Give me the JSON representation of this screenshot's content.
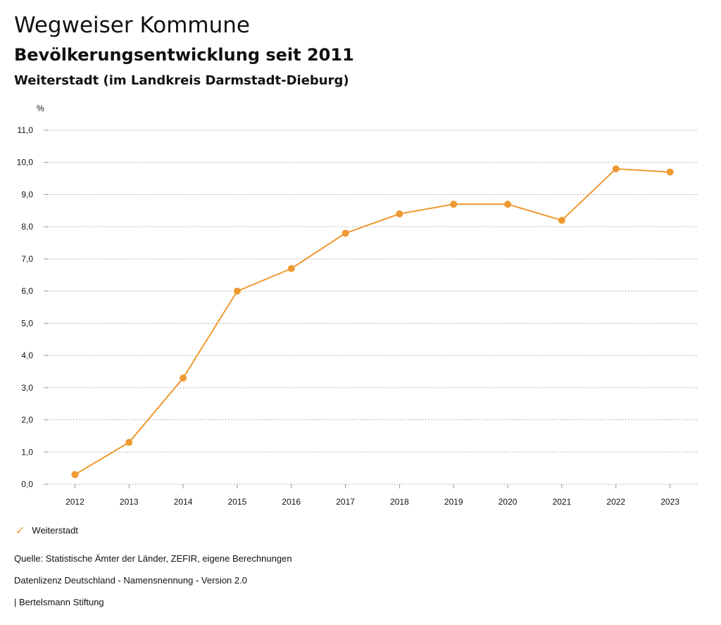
{
  "header": {
    "title": "Wegweiser Kommune",
    "subtitle": "Bevölkerungsentwicklung seit 2011",
    "region": "Weiterstadt (im Landkreis Darmstadt-Dieburg)"
  },
  "chart_data": {
    "type": "line",
    "ylabel": "%",
    "ylim": [
      0,
      11
    ],
    "y_ticks": [
      "0,0",
      "1,0",
      "2,0",
      "3,0",
      "4,0",
      "5,0",
      "6,0",
      "7,0",
      "8,0",
      "9,0",
      "10,0",
      "11,0"
    ],
    "categories": [
      "2012",
      "2013",
      "2014",
      "2015",
      "2016",
      "2017",
      "2018",
      "2019",
      "2020",
      "2021",
      "2022",
      "2023"
    ],
    "series": [
      {
        "name": "Weiterstadt",
        "color": "#ee9933",
        "values": [
          0.3,
          1.3,
          3.3,
          6.0,
          6.7,
          7.8,
          8.4,
          8.7,
          8.7,
          8.2,
          9.8,
          9.7
        ]
      }
    ],
    "grid": true,
    "legend": "bottom-left"
  },
  "legend": {
    "label": "Weiterstadt",
    "icon": "check-icon"
  },
  "footer": {
    "source": "Quelle: Statistische Ämter der Länder, ZEFIR, eigene Berechnungen",
    "license": "Datenlizenz Deutschland - Namensnennung - Version 2.0",
    "publisher": "| Bertelsmann Stiftung"
  }
}
